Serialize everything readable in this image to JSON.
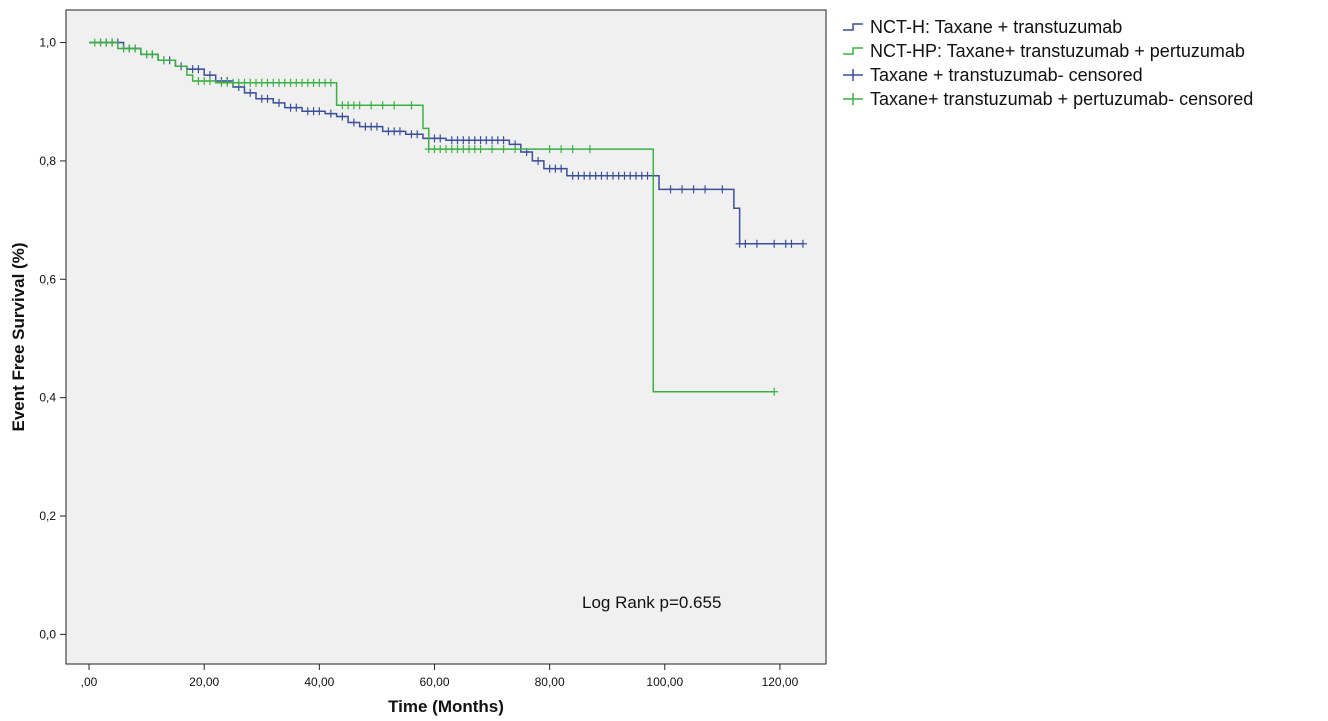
{
  "chart_data": {
    "type": "line",
    "xlabel": "Time (Months)",
    "ylabel": "Event Free Survival (%)",
    "xlim": [
      -4,
      128
    ],
    "ylim": [
      -0.05,
      1.055
    ],
    "x_ticks": [
      {
        "value": 0,
        "label": ",00"
      },
      {
        "value": 20,
        "label": "20,00"
      },
      {
        "value": 40,
        "label": "40,00"
      },
      {
        "value": 60,
        "label": "60,00"
      },
      {
        "value": 80,
        "label": "80,00"
      },
      {
        "value": 100,
        "label": "100,00"
      },
      {
        "value": 120,
        "label": "120,00"
      }
    ],
    "y_ticks": [
      {
        "value": 0.0,
        "label": "0,0"
      },
      {
        "value": 0.2,
        "label": "0,2"
      },
      {
        "value": 0.4,
        "label": "0,4"
      },
      {
        "value": 0.6,
        "label": "0,6"
      },
      {
        "value": 0.8,
        "label": "0,8"
      },
      {
        "value": 1.0,
        "label": "1,0"
      }
    ],
    "grid": false,
    "legend_position": "outside-right",
    "plot_background": "#f0f0f0",
    "annotation": "Log Rank p=0.655",
    "series": [
      {
        "name": "NCT-H: Taxane + transtuzumab",
        "censored_name": "Taxane + transtuzumab- censored",
        "color": "#3b4f9a",
        "steps": [
          [
            0,
            1.0
          ],
          [
            6,
            0.99
          ],
          [
            9,
            0.98
          ],
          [
            12,
            0.97
          ],
          [
            15,
            0.96
          ],
          [
            17,
            0.955
          ],
          [
            20,
            0.945
          ],
          [
            22,
            0.935
          ],
          [
            25,
            0.925
          ],
          [
            27,
            0.915
          ],
          [
            29,
            0.905
          ],
          [
            32,
            0.898
          ],
          [
            34,
            0.89
          ],
          [
            37,
            0.884
          ],
          [
            41,
            0.88
          ],
          [
            43,
            0.875
          ],
          [
            45,
            0.865
          ],
          [
            47,
            0.858
          ],
          [
            51,
            0.85
          ],
          [
            55,
            0.845
          ],
          [
            58,
            0.838
          ],
          [
            62,
            0.835
          ],
          [
            73,
            0.828
          ],
          [
            75,
            0.815
          ],
          [
            77,
            0.8
          ],
          [
            79,
            0.787
          ],
          [
            83,
            0.775
          ],
          [
            99,
            0.752
          ],
          [
            112,
            0.72
          ],
          [
            113,
            0.66
          ],
          [
            124,
            0.66
          ]
        ],
        "censored": [
          2,
          3,
          4,
          5,
          7,
          8,
          10,
          11,
          13,
          14,
          16,
          18,
          19,
          21,
          23,
          24,
          26,
          28,
          30,
          31,
          33,
          35,
          36,
          38,
          39,
          40,
          42,
          44,
          46,
          48,
          49,
          50,
          52,
          53,
          54,
          56,
          57,
          59,
          60,
          61,
          63,
          64,
          65,
          66,
          67,
          68,
          69,
          70,
          71,
          72,
          74,
          76,
          78,
          80,
          81,
          82,
          84,
          85,
          86,
          87,
          88,
          89,
          90,
          91,
          92,
          93,
          94,
          95,
          96,
          97,
          98,
          101,
          103,
          105,
          107,
          110,
          113,
          114,
          116,
          119,
          121,
          122,
          124
        ]
      },
      {
        "name": "NCT-HP: Taxane+ transtuzumab + pertuzumab",
        "censored_name": "Taxane+ transtuzumab + pertuzumab- censored",
        "color": "#3cb043",
        "steps": [
          [
            0,
            1.0
          ],
          [
            5,
            0.99
          ],
          [
            9,
            0.98
          ],
          [
            12,
            0.97
          ],
          [
            15,
            0.96
          ],
          [
            17,
            0.945
          ],
          [
            18,
            0.935
          ],
          [
            22,
            0.932
          ],
          [
            43,
            0.894
          ],
          [
            58,
            0.855
          ],
          [
            59,
            0.82
          ],
          [
            98,
            0.41
          ],
          [
            119,
            0.41
          ]
        ],
        "censored": [
          1,
          2,
          3,
          4,
          6,
          7,
          8,
          10,
          11,
          13,
          19,
          20,
          21,
          23,
          24,
          25,
          26,
          27,
          28,
          29,
          30,
          31,
          32,
          33,
          34,
          35,
          36,
          37,
          38,
          39,
          40,
          41,
          42,
          44,
          45,
          46,
          47,
          49,
          51,
          53,
          56,
          59,
          60,
          61,
          62,
          63,
          64,
          65,
          66,
          67,
          68,
          70,
          72,
          74,
          80,
          82,
          84,
          87,
          119
        ]
      }
    ]
  }
}
